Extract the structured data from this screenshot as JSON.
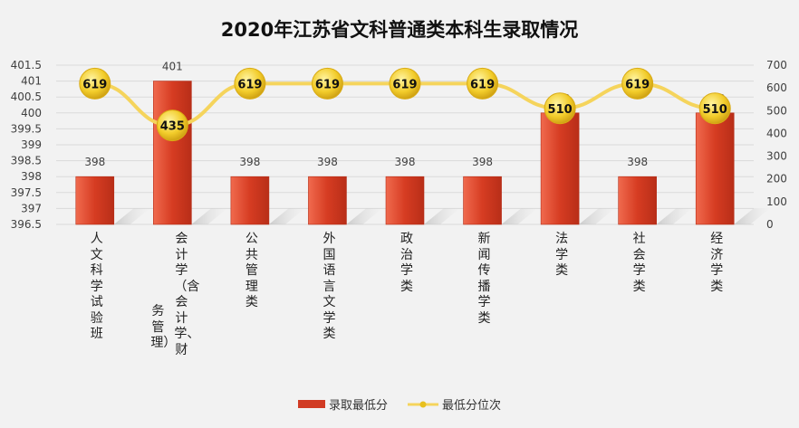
{
  "chart_data": {
    "type": "bar",
    "title": "2020年江苏省文科普通类本科生录取情况",
    "categories": [
      "人文科学试验班",
      "会计学（含会计学、财务管理）",
      "公共管理类",
      "外国语言文学类",
      "政治学类",
      "新闻传播学类",
      "法学类",
      "社会学类",
      "经济学类"
    ],
    "category_lines": [
      [
        "人文科学试验班"
      ],
      [
        "会计学（含会计学、财",
        "务管理）"
      ],
      [
        "公共管理类"
      ],
      [
        "外国语言文学类"
      ],
      [
        "政治学类"
      ],
      [
        "新闻传播学类"
      ],
      [
        "法学类"
      ],
      [
        "社会学类"
      ],
      [
        "经济学类"
      ]
    ],
    "series": [
      {
        "name": "录取最低分",
        "type": "bar",
        "axis": "left",
        "values": [
          398,
          401,
          398,
          398,
          398,
          398,
          400,
          398,
          400
        ],
        "color": "#d13b24"
      },
      {
        "name": "最低分位次",
        "type": "line",
        "axis": "right",
        "values": [
          619,
          435,
          619,
          619,
          619,
          619,
          510,
          619,
          510
        ],
        "color": "#f5d45c"
      }
    ],
    "y_left": {
      "min": 396.5,
      "max": 401.5,
      "step": 0.5,
      "ticks": [
        "396.5",
        "397",
        "397.5",
        "398",
        "398.5",
        "399",
        "399.5",
        "400",
        "400.5",
        "401",
        "401.5"
      ]
    },
    "y_right": {
      "min": 0,
      "max": 700,
      "step": 100,
      "ticks": [
        "0",
        "100",
        "200",
        "300",
        "400",
        "500",
        "600",
        "700"
      ]
    },
    "grid": true,
    "legend": "bottom"
  }
}
